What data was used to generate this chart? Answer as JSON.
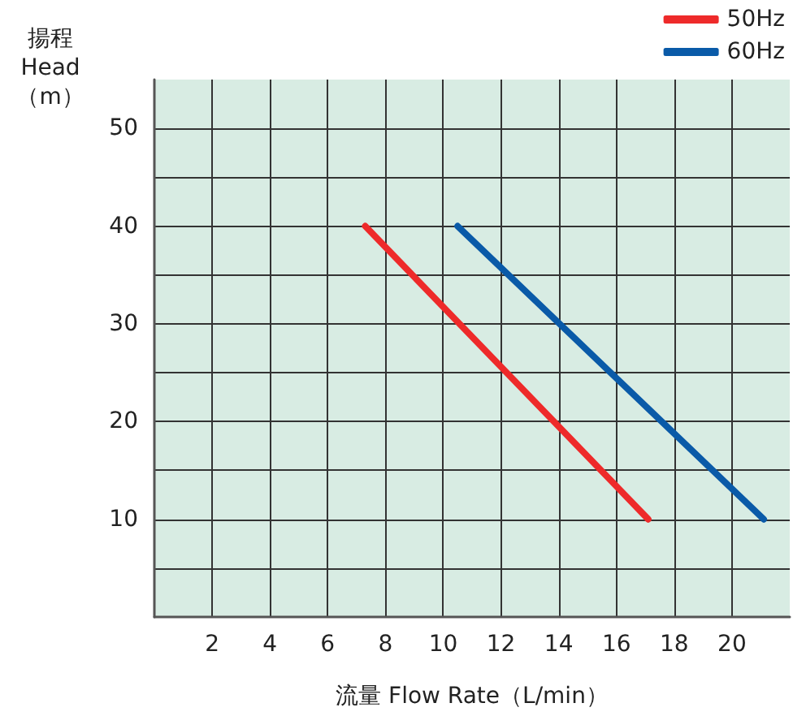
{
  "chart_data": {
    "type": "line",
    "xlabel": "流量 Flow Rate（L/min）",
    "ylabel": "揚程 Head （m）",
    "series": [
      {
        "name": "50Hz",
        "color": "#ee2a2a",
        "x": [
          7.3,
          17.1
        ],
        "values": [
          40,
          10
        ]
      },
      {
        "name": "60Hz",
        "color": "#0a5aa8",
        "x": [
          10.5,
          21.1
        ],
        "values": [
          40,
          10
        ]
      }
    ],
    "xlim": [
      0,
      22
    ],
    "xticks": [
      2,
      4,
      6,
      8,
      10,
      12,
      14,
      16,
      18,
      20
    ],
    "ylim": [
      0,
      55
    ],
    "yticks": [
      {
        "value": 5,
        "label": null
      },
      10,
      {
        "value": 15,
        "label": null
      },
      20,
      {
        "value": 25,
        "label": null
      },
      30,
      {
        "value": 35,
        "label": null
      },
      40,
      {
        "value": 45,
        "label": null
      },
      50
    ],
    "grid": true,
    "legend": "top right",
    "marker": "none",
    "line_style": "solid"
  }
}
